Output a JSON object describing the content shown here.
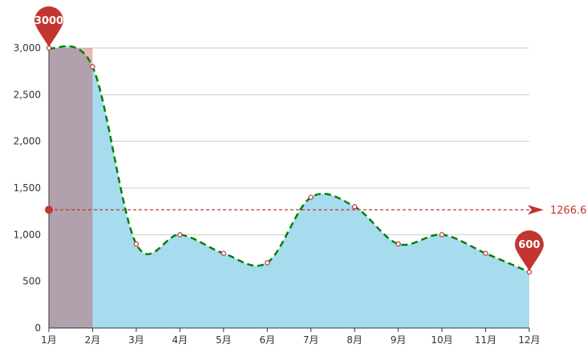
{
  "chart_data": {
    "type": "area",
    "categories": [
      "1月",
      "2月",
      "3月",
      "4月",
      "5月",
      "6月",
      "7月",
      "8月",
      "9月",
      "10月",
      "11月",
      "12月"
    ],
    "series": [
      {
        "values": [
          3000,
          2800,
          900,
          1000,
          800,
          700,
          1400,
          1300,
          900,
          1000,
          800,
          600
        ]
      }
    ],
    "ylim": [
      0,
      3000
    ],
    "yticks": [
      0,
      500,
      1000,
      1500,
      2000,
      2500,
      3000
    ],
    "ytick_labels": [
      "0",
      "500",
      "1,000",
      "1,500",
      "2,000",
      "2,500",
      "3,000"
    ],
    "grid": true,
    "mark_points": [
      {
        "type": "max",
        "category_index": 0,
        "value": 3000,
        "label": "3000"
      },
      {
        "type": "min",
        "category_index": 11,
        "value": 600,
        "label": "600"
      }
    ],
    "mark_line": {
      "type": "average",
      "value": 1266.67,
      "label": "1266.67"
    },
    "mark_area": {
      "from_index": 0,
      "to_index": 1
    },
    "colors": {
      "area_fill": "#a6dcee",
      "line": "#008000",
      "marker": "#c23531",
      "mark_area": "rgba(194,53,49,0.35)",
      "grid": "#cccccc",
      "axis": "#333333"
    }
  }
}
